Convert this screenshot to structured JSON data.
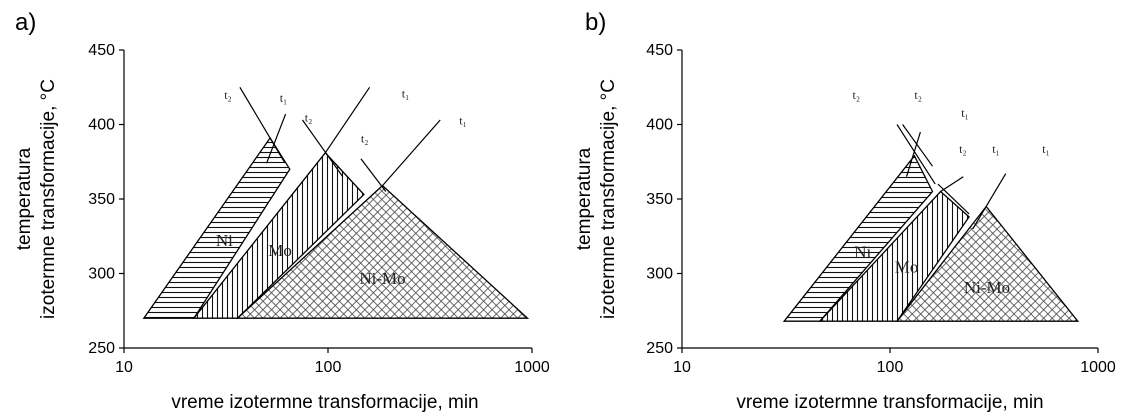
{
  "chart_data": [
    {
      "type": "area",
      "panel_label": "a)",
      "xlabel": "vreme izotermne transformacije, min",
      "ylabel_line1": "temperatura",
      "ylabel_line2": "izotermne transformacije, °C",
      "x_scale": "log",
      "xlim": [
        10,
        1000
      ],
      "ylim": [
        250,
        450
      ],
      "x_ticks": [
        "10",
        "100",
        "1000"
      ],
      "y_ticks": [
        "250",
        "300",
        "350",
        "400",
        "450"
      ],
      "regions": [
        {
          "name": "Ni",
          "pattern": "horizontal",
          "points": [
            [
              12.5,
              270
            ],
            [
              52,
              391
            ],
            [
              65,
              370
            ],
            [
              22,
              270
            ]
          ]
        },
        {
          "name": "Mo",
          "pattern": "vertical",
          "points": [
            [
              22,
              270
            ],
            [
              97,
              381
            ],
            [
              150,
              353
            ],
            [
              36,
              270
            ]
          ]
        },
        {
          "name": "Ni-Mo",
          "pattern": "crosshatch",
          "points": [
            [
              36,
              270
            ],
            [
              185,
              359
            ],
            [
              950,
              270
            ]
          ]
        }
      ],
      "lines": [
        {
          "label": "t₂",
          "points": [
            [
              37,
              425
            ],
            [
              61,
              375
            ]
          ]
        },
        {
          "label": "t₁",
          "points": [
            [
              50,
              374
            ],
            [
              62,
              407
            ]
          ]
        },
        {
          "label": "t₂",
          "points": [
            [
              75,
              403
            ],
            [
              118,
              365
            ]
          ]
        },
        {
          "label": "t₁",
          "points": [
            [
              97,
              381
            ],
            [
              160,
              425
            ]
          ]
        },
        {
          "label": "t₂",
          "points": [
            [
              145,
              377
            ],
            [
              192,
              355
            ]
          ]
        },
        {
          "label": "t₁",
          "points": [
            [
              185,
              359
            ],
            [
              355,
              403
            ]
          ]
        }
      ],
      "line_label_positions": [
        {
          "text": "t₂",
          "x": 31,
          "y": 417
        },
        {
          "text": "t₁",
          "x": 58,
          "y": 415
        },
        {
          "text": "t₂",
          "x": 77,
          "y": 402
        },
        {
          "text": "t₁",
          "x": 230,
          "y": 418
        },
        {
          "text": "t₂",
          "x": 145,
          "y": 388
        },
        {
          "text": "t₁",
          "x": 440,
          "y": 400
        }
      ]
    },
    {
      "type": "area",
      "panel_label": "b)",
      "xlabel": "vreme izotermne transformacije, min",
      "ylabel_line1": "temperatura",
      "ylabel_line2": "izotermne transformacije, °C",
      "x_scale": "log",
      "xlim": [
        10,
        1000
      ],
      "ylim": [
        250,
        450
      ],
      "x_ticks": [
        "10",
        "100",
        "1000"
      ],
      "y_ticks": [
        "250",
        "300",
        "350",
        "400",
        "450"
      ],
      "regions": [
        {
          "name": "Ni",
          "pattern": "horizontal",
          "points": [
            [
              31,
              268
            ],
            [
              131,
              379
            ],
            [
              160,
              355
            ],
            [
              46,
              268
            ]
          ]
        },
        {
          "name": "Mo",
          "pattern": "vertical",
          "points": [
            [
              46,
              268
            ],
            [
              175,
              355
            ],
            [
              240,
              338
            ],
            [
              108,
              268
            ]
          ]
        },
        {
          "name": "Ni-Mo",
          "pattern": "crosshatch",
          "points": [
            [
              108,
              268
            ],
            [
              290,
              345
            ],
            [
              800,
              268
            ]
          ]
        }
      ],
      "lines": [
        {
          "label": "t₂",
          "points": [
            [
              108,
              400
            ],
            [
              165,
              360
            ]
          ]
        },
        {
          "label": "t₂",
          "points": [
            [
              115,
              400
            ],
            [
              160,
              372
            ]
          ]
        },
        {
          "label": "t₁",
          "points": [
            [
              120,
              365
            ],
            [
              140,
              395
            ]
          ]
        },
        {
          "label": "t₂",
          "points": [
            [
              170,
              360
            ],
            [
              240,
              340
            ]
          ]
        },
        {
          "label": "t₁",
          "points": [
            [
              175,
              355
            ],
            [
              225,
              365
            ]
          ]
        },
        {
          "label": "t₁",
          "points": [
            [
              250,
              330
            ],
            [
              360,
              367
            ]
          ]
        }
      ],
      "line_label_positions": [
        {
          "text": "t₂",
          "x": 66,
          "y": 417
        },
        {
          "text": "t₂",
          "x": 131,
          "y": 417
        },
        {
          "text": "t₁",
          "x": 220,
          "y": 405
        },
        {
          "text": "t₂",
          "x": 215,
          "y": 381
        },
        {
          "text": "t₁",
          "x": 310,
          "y": 381
        },
        {
          "text": "t₁",
          "x": 540,
          "y": 381
        }
      ]
    }
  ]
}
